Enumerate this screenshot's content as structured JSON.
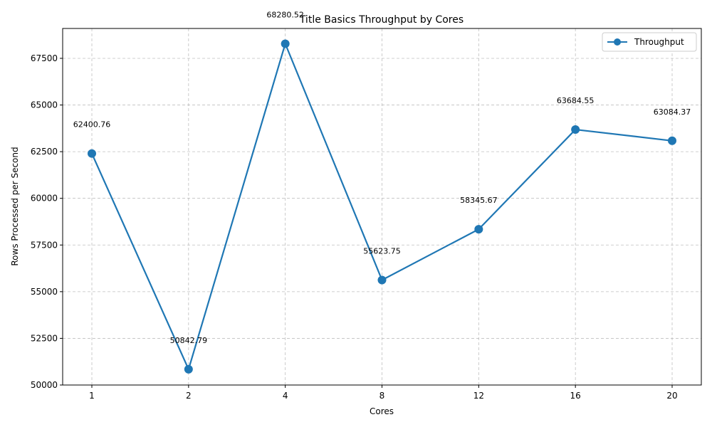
{
  "chart_data": {
    "type": "line",
    "title": "Title Basics Throughput by Cores",
    "xlabel": "Cores",
    "ylabel": "Rows Processed per Second",
    "categories": [
      "1",
      "2",
      "4",
      "8",
      "12",
      "16",
      "20"
    ],
    "series": [
      {
        "name": "Throughput",
        "values": [
          62400.76,
          50842.79,
          68280.52,
          55623.75,
          58345.67,
          63684.55,
          63084.37
        ],
        "data_labels": [
          "62400.76",
          "50842.79",
          "68280.52",
          "55623.75",
          "58345.67",
          "63684.55",
          "63084.37"
        ],
        "color": "#1f77b4"
      }
    ],
    "ylim": [
      50000,
      69100
    ],
    "yticks": [
      50000,
      52500,
      55000,
      57500,
      60000,
      62500,
      65000,
      67500
    ],
    "ytick_labels": [
      "50000",
      "52500",
      "55000",
      "57500",
      "60000",
      "62500",
      "65000",
      "67500"
    ],
    "grid": true,
    "legend_position": "top-right"
  }
}
